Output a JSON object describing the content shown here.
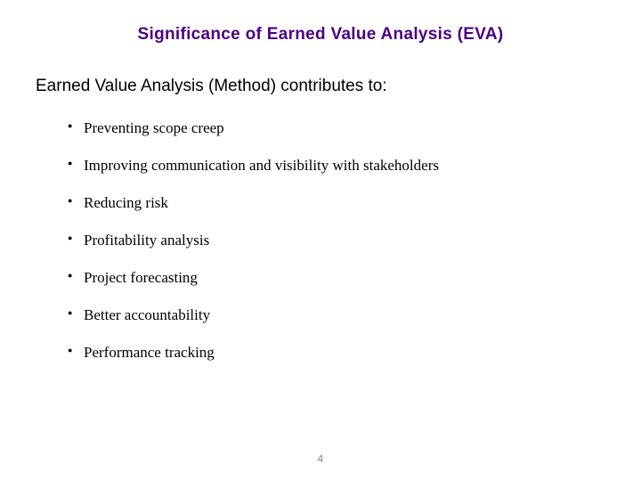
{
  "slide": {
    "title": "Significance of Earned Value Analysis (EVA)",
    "subtitle": "Earned Value Analysis (Method) contributes to:",
    "bullets": [
      "Preventing scope creep",
      "Improving communication and visibility with stakeholders",
      "Reducing risk",
      "Profitability analysis",
      "Project forecasting",
      "Better accountability",
      "Performance tracking"
    ],
    "page_number": "4",
    "colors": {
      "title_color": "#4b0082",
      "text_color": "#000000",
      "page_number_color": "#888888",
      "background": "#ffffff"
    },
    "typography": {
      "title_fontsize": 19,
      "title_weight": "bold",
      "subtitle_fontsize": 19,
      "bullet_fontsize": 17,
      "page_number_fontsize": 12,
      "title_font": "Verdana",
      "bullet_font": "Georgia"
    }
  }
}
